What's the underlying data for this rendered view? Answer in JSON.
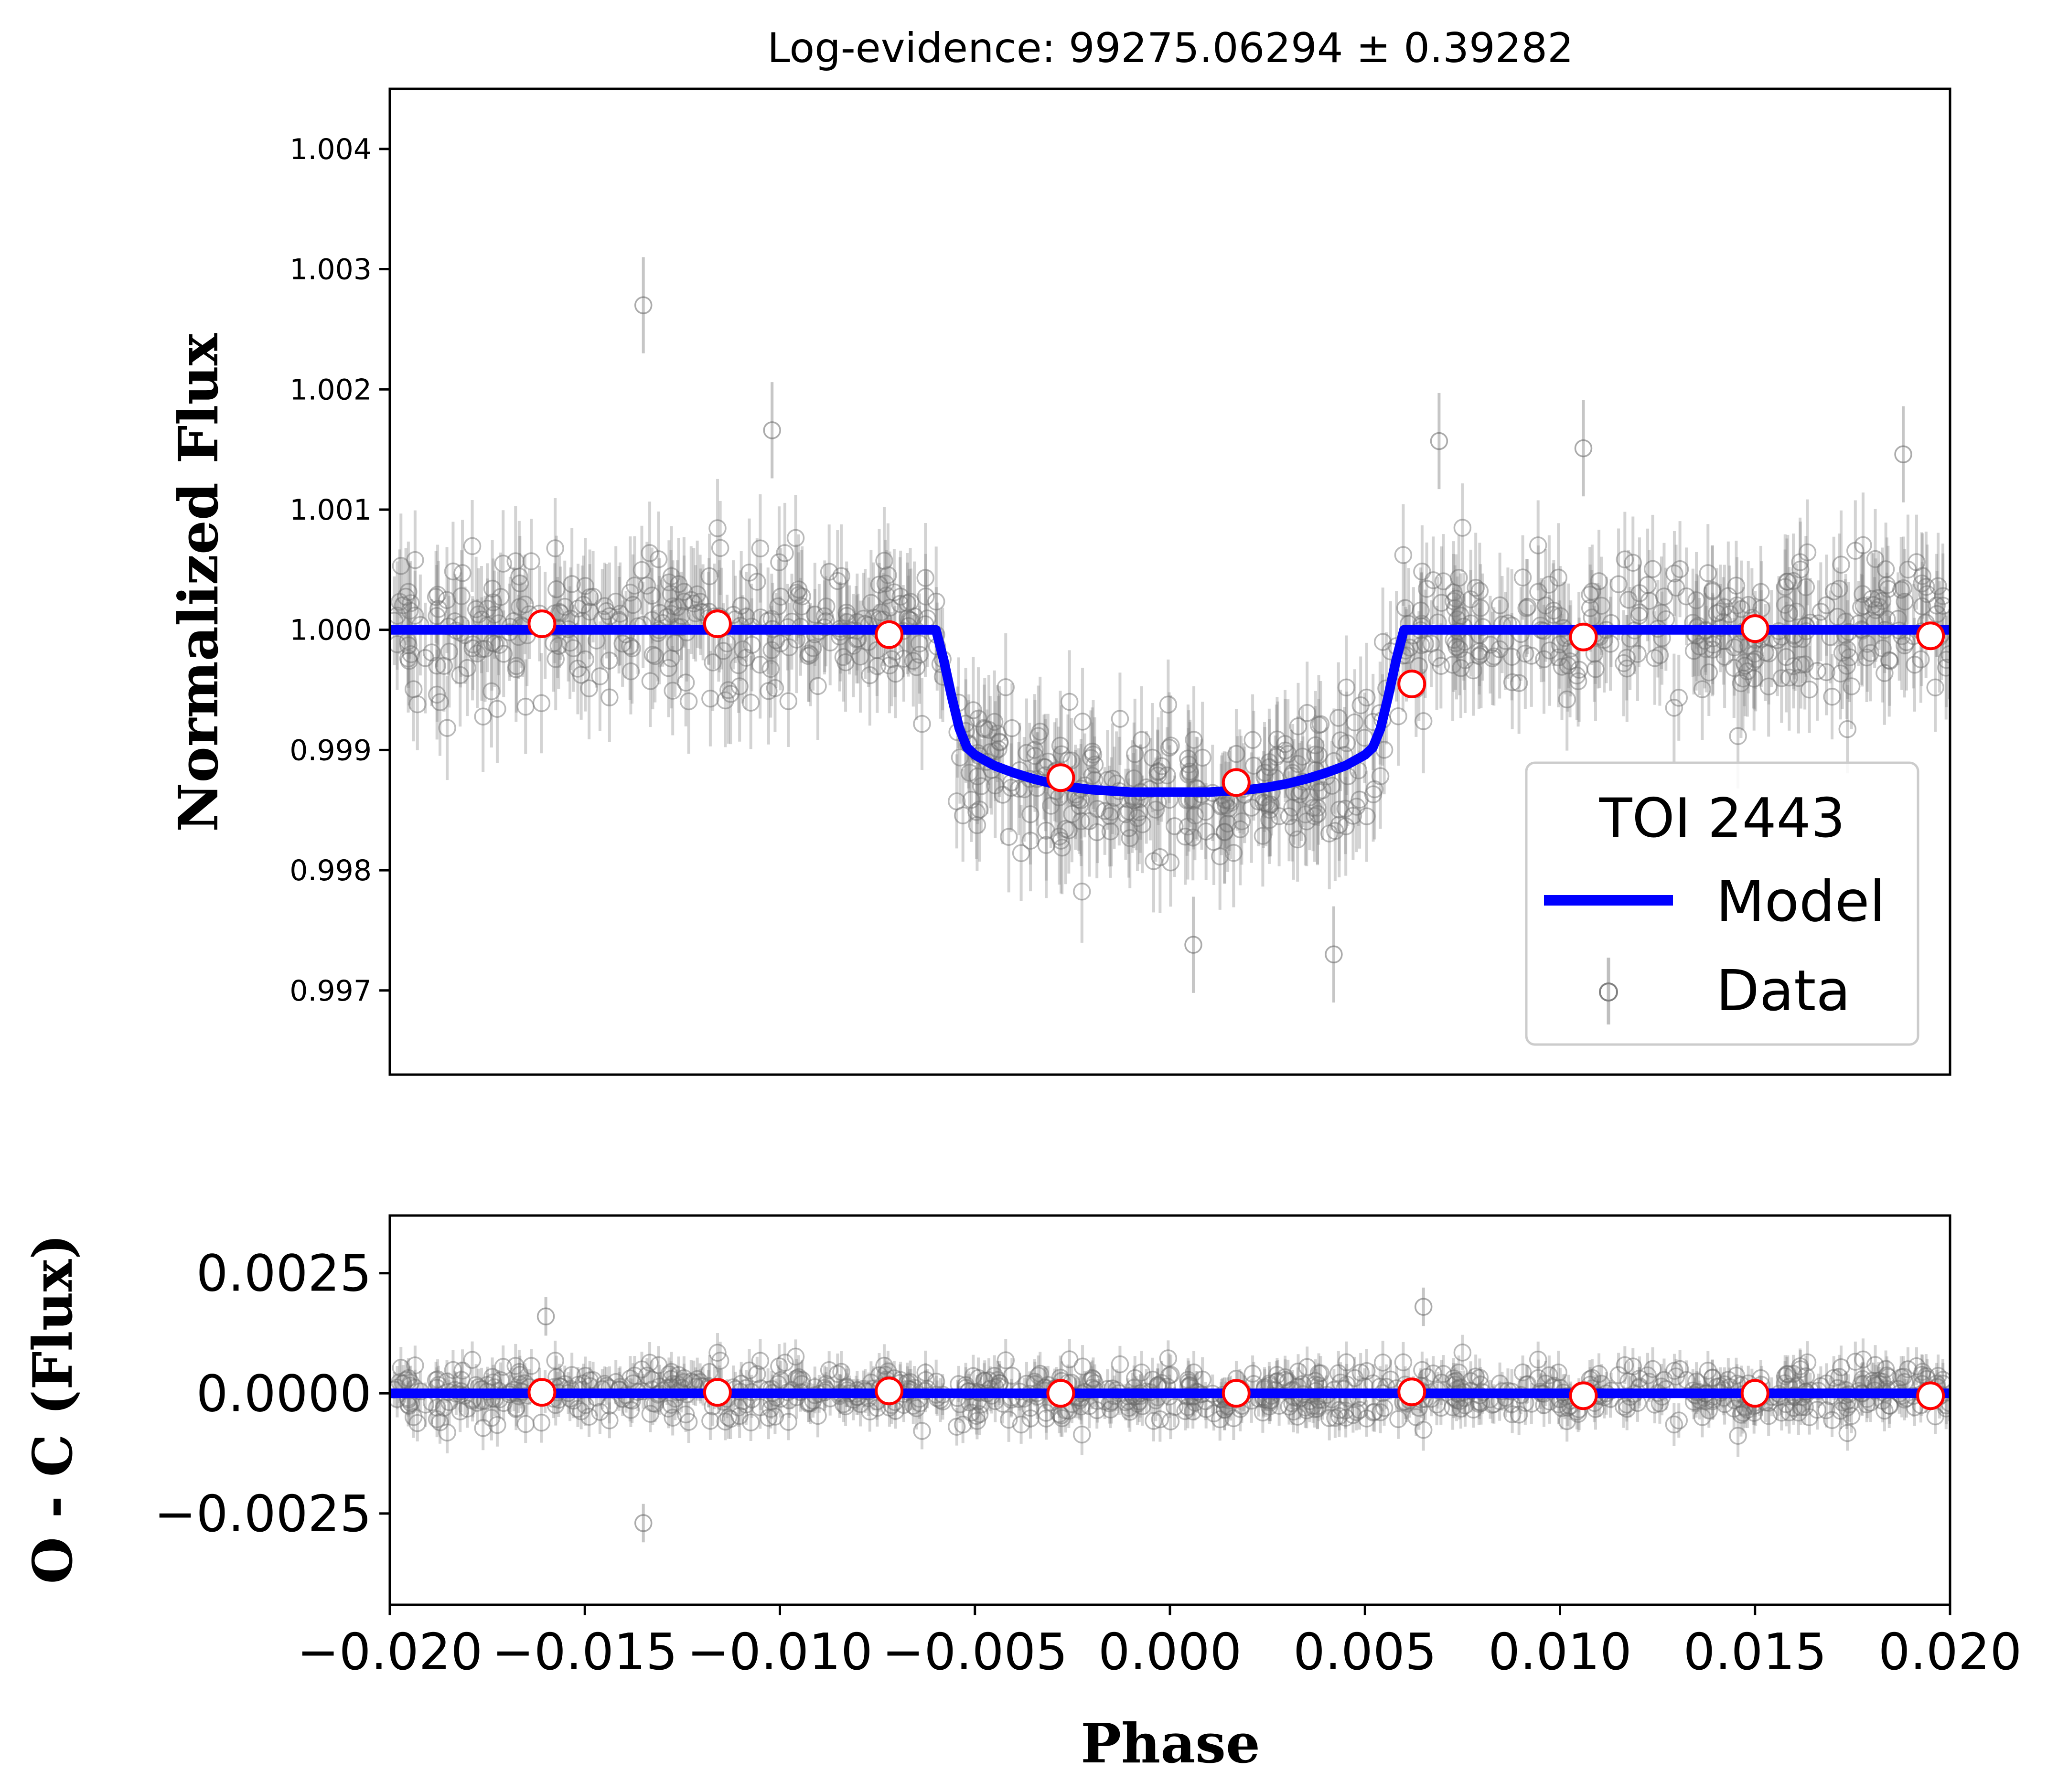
{
  "chart_data": [
    {
      "type": "scatter",
      "panel": "top",
      "title": "Log-evidence: 99275.06294 ± 0.39282",
      "ylabel": "Normalized Flux",
      "xlabel": "",
      "xlim": [
        -0.02,
        0.02
      ],
      "ylim": [
        0.9963,
        1.0045
      ],
      "yticks": [
        0.997,
        0.998,
        0.999,
        1.0,
        1.001,
        1.002,
        1.003,
        1.004
      ],
      "ytick_labels": [
        "0.997",
        "0.998",
        "0.999",
        "1.000",
        "1.001",
        "1.002",
        "1.003",
        "1.004"
      ],
      "legend": {
        "title": "TOI 2443",
        "location": "lower right",
        "entries": [
          "Model",
          "Data"
        ]
      },
      "series": [
        {
          "name": "Model",
          "kind": "line",
          "color": "#0000ff",
          "x": [
            -0.02,
            -0.006,
            -0.0058,
            -0.0056,
            -0.0054,
            -0.0052,
            -0.005,
            -0.0045,
            -0.004,
            -0.0035,
            -0.003,
            -0.0025,
            -0.002,
            -0.0015,
            -0.001,
            -0.0005,
            0.0,
            0.0005,
            0.001,
            0.0015,
            0.002,
            0.0025,
            0.003,
            0.0035,
            0.004,
            0.0045,
            0.005,
            0.0052,
            0.0054,
            0.0056,
            0.0058,
            0.006,
            0.02
          ],
          "y": [
            1.0,
            1.0,
            0.99975,
            0.99945,
            0.99918,
            0.99902,
            0.99896,
            0.99887,
            0.99881,
            0.99876,
            0.99872,
            0.99869,
            0.99867,
            0.99866,
            0.99865,
            0.99865,
            0.99865,
            0.99865,
            0.99865,
            0.99866,
            0.99867,
            0.99869,
            0.99872,
            0.99876,
            0.99881,
            0.99887,
            0.99896,
            0.99902,
            0.99918,
            0.99945,
            0.99975,
            1.0,
            1.0
          ]
        },
        {
          "name": "Data",
          "kind": "scatter-errorbar",
          "color": "#808080",
          "approx_points": 900,
          "notes_outliers": [
            [
              -0.0135,
              1.0027
            ],
            [
              -0.0102,
              1.00166
            ],
            [
              0.0069,
              1.00157
            ],
            [
              0.0106,
              1.00151
            ],
            [
              0.0188,
              1.00146
            ],
            [
              0.0042,
              0.9973
            ],
            [
              0.0006,
              0.99738
            ]
          ]
        },
        {
          "name": "Binned",
          "kind": "scatter",
          "color": "#ff0000",
          "x": [
            -0.0161,
            -0.0116,
            -0.0072,
            -0.0028,
            0.0017,
            0.0062,
            0.0106,
            0.015,
            0.0195
          ],
          "y": [
            1.00005,
            1.00005,
            0.99996,
            0.99877,
            0.99873,
            0.99955,
            0.99994,
            1.00001,
            0.99995
          ]
        }
      ]
    },
    {
      "type": "scatter",
      "panel": "bottom",
      "title": "",
      "xlabel": "Phase",
      "ylabel": "O - C (Flux)",
      "xlim": [
        -0.02,
        0.02
      ],
      "ylim": [
        -0.0044,
        0.0037
      ],
      "yticks": [
        -0.0025,
        0.0,
        0.0025
      ],
      "ytick_labels": [
        "−0.0025",
        "0.0000",
        "0.0025"
      ],
      "xticks": [
        -0.02,
        -0.015,
        -0.01,
        -0.005,
        0.0,
        0.005,
        0.01,
        0.015,
        0.02
      ],
      "xtick_labels": [
        "−0.020",
        "−0.015",
        "−0.010",
        "−0.005",
        "0.000",
        "0.005",
        "0.010",
        "0.015",
        "0.020"
      ],
      "series": [
        {
          "name": "Model",
          "kind": "line",
          "color": "#0000ff",
          "x": [
            -0.02,
            0.02
          ],
          "y": [
            0.0,
            0.0
          ]
        },
        {
          "name": "Residuals",
          "kind": "scatter-errorbar",
          "color": "#808080",
          "approx_points": 900,
          "notes_outliers": [
            [
              -0.0135,
              -0.0027
            ],
            [
              0.0065,
              0.0018
            ],
            [
              -0.016,
              0.0016
            ]
          ]
        },
        {
          "name": "Binned residuals",
          "kind": "scatter",
          "color": "#ff0000",
          "x": [
            -0.0161,
            -0.0116,
            -0.0072,
            -0.0028,
            0.0017,
            0.0062,
            0.0106,
            0.015,
            0.0195
          ],
          "y": [
            2e-05,
            2e-05,
            5e-05,
            0.0,
            0.0,
            3e-05,
            -5e-05,
            0.0,
            -5e-05
          ]
        }
      ]
    }
  ]
}
